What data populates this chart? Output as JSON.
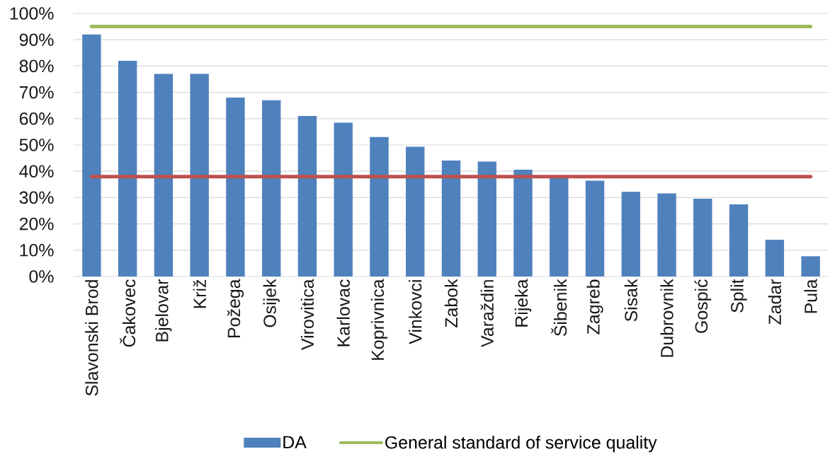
{
  "chart_data": {
    "type": "bar",
    "categories": [
      "Slavonski Brod",
      "Čakovec",
      "Bjelovar",
      "Križ",
      "Požega",
      "Osijek",
      "Virovitica",
      "Karlovac",
      "Koprivnica",
      "Vinkovci",
      "Zabok",
      "Varaždin",
      "Rijeka",
      "Šibenik",
      "Zagreb",
      "Sisak",
      "Dubrovnik",
      "Gospić",
      "Split",
      "Zadar",
      "Pula"
    ],
    "series": [
      {
        "name": "DA",
        "color": "#4f81bd",
        "values": [
          92,
          82,
          77,
          77,
          68,
          67,
          61,
          58.5,
          53,
          49.3,
          44.1,
          43.7,
          40.6,
          38,
          36.4,
          32.2,
          31.6,
          29.6,
          27.4,
          14,
          7.7
        ]
      },
      {
        "type": "line",
        "color": "#c0504d",
        "values": [
          38,
          38,
          38,
          38,
          38,
          38,
          38,
          38,
          38,
          38,
          38,
          38,
          38,
          38,
          38,
          38,
          38,
          38,
          38,
          38,
          38
        ]
      },
      {
        "type": "line",
        "name": "General standard of service quality",
        "color": "#9bbb59",
        "values": [
          95,
          95,
          95,
          95,
          95,
          95,
          95,
          95,
          95,
          95,
          95,
          95,
          95,
          95,
          95,
          95,
          95,
          95,
          95,
          95,
          95
        ]
      }
    ],
    "ylim": [
      0,
      100
    ],
    "yticks": [
      {
        "value": 0,
        "label": "0%"
      },
      {
        "value": 10,
        "label": "10%"
      },
      {
        "value": 20,
        "label": "20%"
      },
      {
        "value": 30,
        "label": "30%"
      },
      {
        "value": 40,
        "label": "40%"
      },
      {
        "value": 50,
        "label": "50%"
      },
      {
        "value": 60,
        "label": "60%"
      },
      {
        "value": 70,
        "label": "70%"
      },
      {
        "value": 80,
        "label": "80%"
      },
      {
        "value": 90,
        "label": "90%"
      },
      {
        "value": 100,
        "label": "100%"
      }
    ],
    "grid": "y",
    "legend": "bottom",
    "line_style": "solid"
  }
}
